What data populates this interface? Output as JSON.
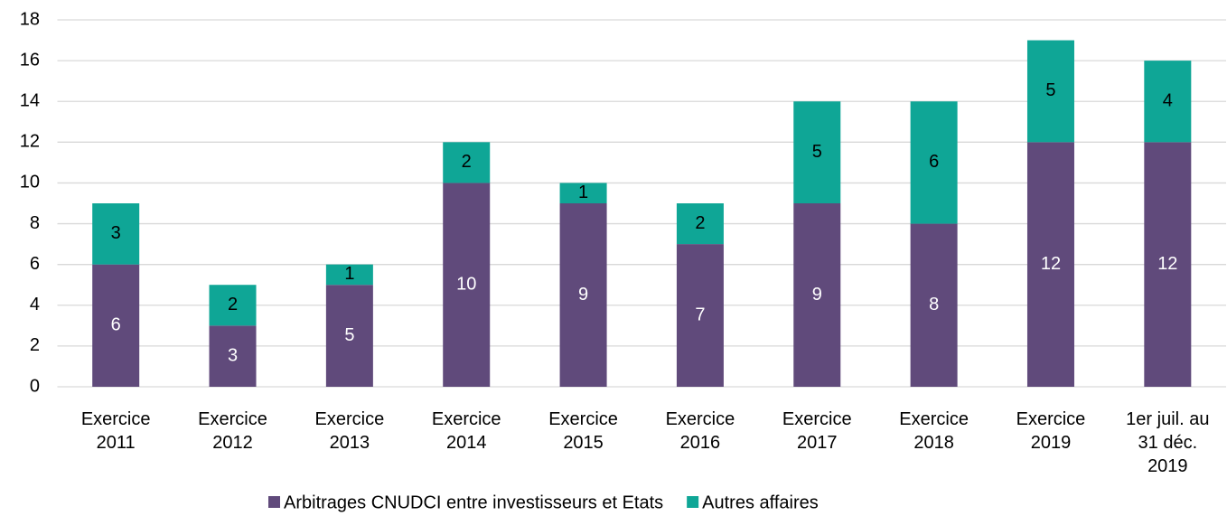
{
  "chart_data": {
    "type": "stacked_bar",
    "categories": [
      [
        "Exercice",
        "2011"
      ],
      [
        "Exercice",
        "2012"
      ],
      [
        "Exercice",
        "2013"
      ],
      [
        "Exercice",
        "2014"
      ],
      [
        "Exercice",
        "2015"
      ],
      [
        "Exercice",
        "2016"
      ],
      [
        "Exercice",
        "2017"
      ],
      [
        "Exercice",
        "2018"
      ],
      [
        "Exercice",
        "2019"
      ],
      [
        "1er juil. au",
        "31 déc.",
        "2019"
      ]
    ],
    "series": [
      {
        "name": "Arbitrages CNUDCI entre investisseurs et Etats",
        "color": "#604a7b",
        "label_color": "#ffffff",
        "values": [
          6,
          3,
          5,
          10,
          9,
          7,
          9,
          8,
          12,
          12
        ]
      },
      {
        "name": "Autres affaires",
        "color": "#0fa696",
        "label_color": "#000000",
        "values": [
          3,
          2,
          1,
          2,
          1,
          2,
          5,
          6,
          5,
          4
        ]
      }
    ],
    "ylim": [
      0,
      18
    ],
    "yticks": [
      0,
      2,
      4,
      6,
      8,
      10,
      12,
      14,
      16,
      18
    ],
    "grid": true,
    "legend": "bottom"
  }
}
